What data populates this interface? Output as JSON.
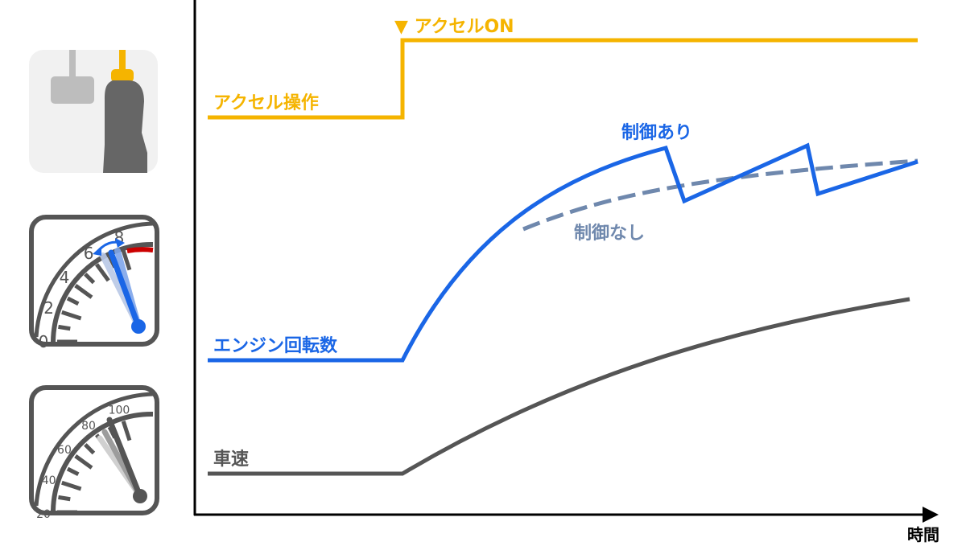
{
  "chart_data": {
    "type": "line",
    "xlabel": "時間",
    "ylabel": "",
    "event_marker": {
      "symbol": "▼",
      "label": "アクセルON"
    },
    "series": [
      {
        "name": "アクセル操作",
        "color": "#f5b400",
        "style": "solid"
      },
      {
        "name": "エンジン回転数",
        "color": "#1a66e6",
        "style": "solid",
        "label": "制御あり"
      },
      {
        "name": "エンジン回転数",
        "color": "#6f88ad",
        "style": "dashed",
        "label": "制御なし"
      },
      {
        "name": "車速",
        "color": "#555555",
        "style": "solid"
      }
    ]
  },
  "labels": {
    "accel_on": "▼ アクセルON",
    "accel_series": "アクセル操作",
    "control_on": "制御あり",
    "control_off": "制御なし",
    "rpm_series": "エンジン回転数",
    "speed_series": "車速",
    "x_axis": "時間"
  },
  "icons": {
    "pedal": "accelerator-pedal-icon",
    "tachometer": "tachometer-icon",
    "speedometer": "speedometer-icon"
  },
  "tachometer": {
    "ticks": [
      "0",
      "2",
      "4",
      "6",
      "8"
    ]
  },
  "speedometer": {
    "ticks": [
      "20",
      "40",
      "60",
      "80",
      "100"
    ]
  }
}
